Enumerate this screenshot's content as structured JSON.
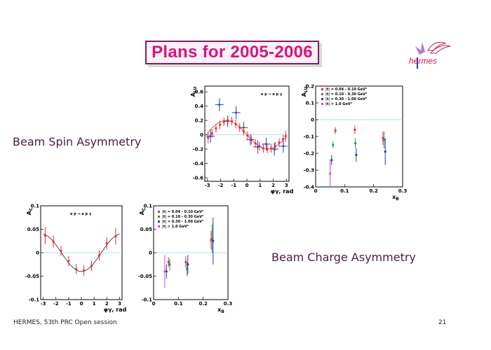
{
  "slide": {
    "title": "Plans for 2005-2006",
    "logo_text": "hermes",
    "beam_spin_label": "Beam Spin Asymmetry",
    "beam_charge_label": "Beam Charge Asymmetry",
    "footer_left": "HERMES, 53th PRC Open session",
    "page_number": "21"
  },
  "colors": {
    "title": "#d6157f",
    "border": "#7a1f6c",
    "guide": "#9ad5ec"
  },
  "chart_data": [
    {
      "type": "scatter",
      "id": "alu-phi",
      "ylabel": "A_LU",
      "xlabel": "φγ, rad",
      "annotation": "e p → e p γ",
      "xlim": [
        -3.2,
        3.2
      ],
      "ylim": [
        -0.65,
        0.68
      ],
      "xticks": [
        -3,
        -2,
        -1,
        0,
        1,
        2,
        3
      ],
      "yticks": [
        0.6,
        0.4,
        0.2,
        0,
        -0.2,
        -0.4,
        -0.6
      ],
      "ytick_labels": [
        "0.6",
        "0.4",
        "0.2",
        "0",
        "-0.2",
        "-0.4",
        "-0.6"
      ],
      "curve": {
        "type": "sine",
        "amplitude": -0.2
      },
      "series": [
        {
          "style": "blue-cross",
          "x": [
            -2.77,
            -2.09,
            -1.47,
            -0.82,
            -0.25,
            0.26,
            0.82,
            1.47,
            2.09,
            2.77
          ],
          "y": [
            -0.02,
            0.42,
            0.19,
            0.31,
            0.1,
            -0.07,
            -0.17,
            -0.13,
            -0.2,
            -0.16
          ],
          "err": [
            0.09,
            0.09,
            0.08,
            0.09,
            0.08,
            0.08,
            0.09,
            0.09,
            0.09,
            0.09
          ]
        },
        {
          "style": "red-dot",
          "x": [
            -2.95,
            -2.65,
            -2.35,
            -2.05,
            -1.75,
            -1.45,
            -1.15,
            -0.85,
            -0.55,
            -0.25,
            0.05,
            0.35,
            0.65,
            0.95,
            1.25,
            1.55,
            1.85,
            2.15,
            2.45,
            2.75,
            2.95
          ],
          "y": [
            -0.04,
            0.02,
            0.09,
            0.14,
            0.18,
            0.2,
            0.19,
            0.15,
            0.1,
            0.05,
            -0.01,
            -0.07,
            -0.12,
            -0.16,
            -0.19,
            -0.2,
            -0.19,
            -0.16,
            -0.11,
            -0.06,
            -0.02
          ],
          "err": [
            0.08,
            0.06,
            0.06,
            0.06,
            0.06,
            0.06,
            0.06,
            0.06,
            0.06,
            0.06,
            0.06,
            0.06,
            0.06,
            0.06,
            0.06,
            0.06,
            0.06,
            0.06,
            0.06,
            0.06,
            0.08
          ]
        }
      ]
    },
    {
      "type": "scatter",
      "id": "alu-xb",
      "ylabel": "A_LU",
      "xlabel": "x_B",
      "xlim": [
        0,
        0.3
      ],
      "ylim": [
        -0.4,
        0.2
      ],
      "xticks": [
        0,
        0.1,
        0.2,
        0.3
      ],
      "yticks": [
        0.2,
        0.1,
        0,
        -0.1,
        -0.2,
        -0.3,
        -0.4
      ],
      "ytick_labels": [
        "0.2",
        "0.1",
        "0",
        "-0.1",
        "-0.2",
        "-0.3",
        "-0.4"
      ],
      "legend": [
        "|t| = 0.04 - 0.10 GeV²",
        "|t| = 0.10 - 0.30 GeV²",
        "|t| = 0.30 - 1.00 GeV²",
        "|t| > 1.0 GeV²"
      ],
      "series": [
        {
          "style": "red",
          "x": [
            0.068,
            0.135,
            0.232
          ],
          "y": [
            -0.065,
            -0.06,
            -0.11
          ],
          "err": [
            0.02,
            0.025,
            0.04
          ]
        },
        {
          "style": "green",
          "x": [
            0.06,
            0.137,
            0.236
          ],
          "y": [
            -0.15,
            -0.14,
            -0.12
          ],
          "err": [
            0.02,
            0.03,
            0.05
          ]
        },
        {
          "style": "blue",
          "x": [
            0.055,
            0.14,
            0.24
          ],
          "y": [
            -0.24,
            -0.21,
            -0.19
          ],
          "err": [
            0.03,
            0.04,
            0.08
          ]
        },
        {
          "style": "magenta",
          "x": [
            0.05
          ],
          "y": [
            -0.32
          ],
          "err": [
            0.08
          ]
        }
      ]
    },
    {
      "type": "scatter",
      "id": "ac-phi",
      "ylabel": "A_C",
      "xlabel": "φγ, rad",
      "annotation": "e p → e p γ",
      "xlim": [
        -3.2,
        3.2
      ],
      "ylim": [
        -0.1,
        0.1
      ],
      "xticks": [
        -3,
        -2,
        -1,
        0,
        1,
        2,
        3
      ],
      "yticks": [
        0.1,
        0.05,
        0,
        -0.05,
        -0.1
      ],
      "ytick_labels": [
        "0.1",
        "0.05",
        "0",
        "-0.05",
        "-0.1"
      ],
      "curve": {
        "type": "cosine",
        "amplitude": -0.04
      },
      "series": [
        {
          "style": "red-dot",
          "x": [
            -2.85,
            -2.2,
            -1.6,
            -1.0,
            -0.4,
            0.2,
            0.8,
            1.4,
            2.0,
            2.7
          ],
          "y": [
            0.036,
            0.024,
            0.004,
            -0.018,
            -0.035,
            -0.038,
            -0.028,
            -0.006,
            0.02,
            0.035
          ],
          "err": [
            0.018,
            0.013,
            0.011,
            0.011,
            0.011,
            0.011,
            0.011,
            0.011,
            0.013,
            0.018
          ]
        }
      ]
    },
    {
      "type": "scatter",
      "id": "ac-xb",
      "ylabel": "A_C",
      "xlabel": "x_B",
      "xlim": [
        0,
        0.3
      ],
      "ylim": [
        -0.1,
        0.1
      ],
      "xticks": [
        0,
        0.1,
        0.2,
        0.3
      ],
      "yticks": [
        0.1,
        0.05,
        0,
        -0.05,
        -0.1
      ],
      "ytick_labels": [
        "0.1",
        "0.05",
        "0",
        "-0.05",
        "-0.1"
      ],
      "legend": [
        "|t| = 0.04 - 0.10 GeV²",
        "|t| = 0.10 - 0.30 GeV²",
        "|t| = 0.30 - 1.00 GeV²",
        "|t| > 1.0 GeV²"
      ],
      "series": [
        {
          "style": "red",
          "x": [
            0.06,
            0.13,
            0.232
          ],
          "y": [
            -0.02,
            -0.02,
            0.027
          ],
          "err": [
            0.01,
            0.012,
            0.02
          ]
        },
        {
          "style": "green",
          "x": [
            0.065,
            0.135,
            0.236
          ],
          "y": [
            -0.025,
            -0.035,
            0.03
          ],
          "err": [
            0.012,
            0.015,
            0.03
          ]
        },
        {
          "style": "blue",
          "x": [
            0.052,
            0.138,
            0.24
          ],
          "y": [
            -0.04,
            -0.025,
            0.025
          ],
          "err": [
            0.015,
            0.02,
            0.05
          ]
        },
        {
          "style": "magenta",
          "x": [
            0.045
          ],
          "y": [
            -0.04
          ],
          "err": [
            0.035
          ]
        }
      ]
    }
  ]
}
